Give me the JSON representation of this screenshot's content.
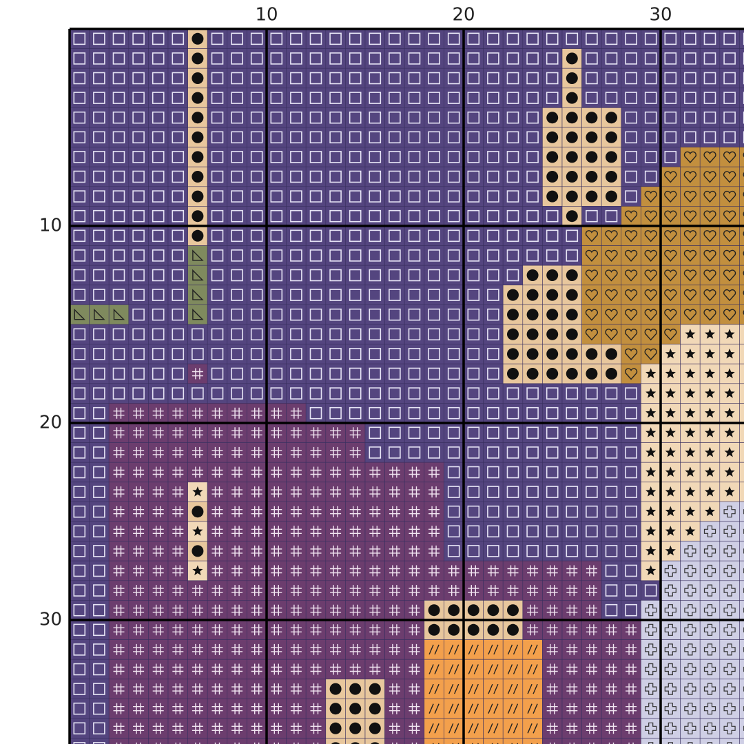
{
  "top_axis": {
    "labels": [
      "10",
      "20",
      "30"
    ]
  },
  "left_axis": {
    "labels": [
      "10",
      "20",
      "30"
    ]
  }
}
